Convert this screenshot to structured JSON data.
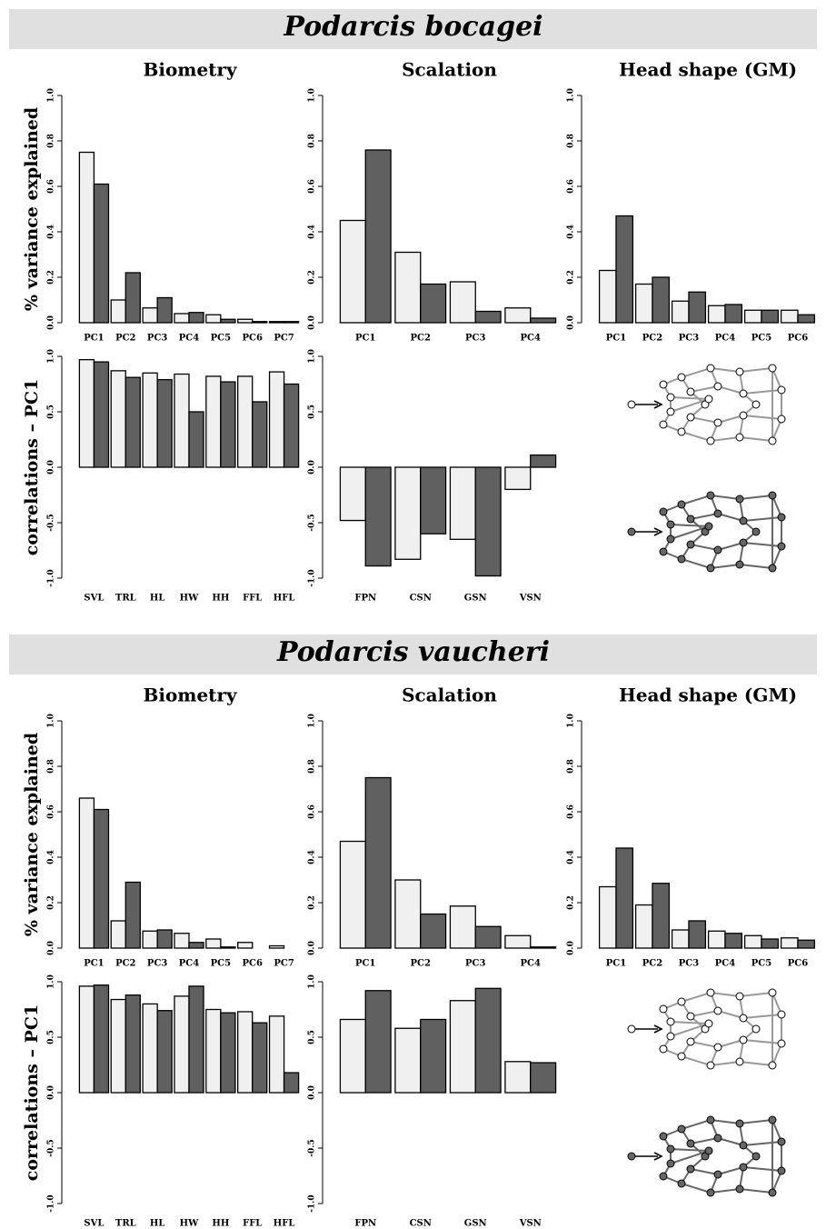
{
  "headings": [
    "Podarcis bocagei",
    "Podarcis vaucheri"
  ],
  "chart_data": [
    {
      "type": "bar",
      "title": "Biometry",
      "ylabel": "% variance explained",
      "categories": [
        "PC1",
        "PC2",
        "PC3",
        "PC4",
        "PC5",
        "PC6",
        "PC7"
      ],
      "series": [
        {
          "color": "#f0f0f0",
          "values": [
            0.75,
            0.1,
            0.065,
            0.04,
            0.035,
            0.015,
            0.005
          ]
        },
        {
          "color": "#606060",
          "values": [
            0.61,
            0.22,
            0.11,
            0.045,
            0.015,
            0.005,
            0.005
          ]
        }
      ],
      "ylim": [
        0,
        1
      ],
      "yticks": [
        {
          "value": 0,
          "label": "0.0"
        },
        0.2,
        0.4,
        0.6,
        0.8,
        {
          "value": 1,
          "label": "1.0"
        }
      ]
    },
    {
      "type": "bar",
      "title": "Scalation",
      "categories": [
        "PC1",
        "PC2",
        "PC3",
        "PC4"
      ],
      "series": [
        {
          "color": "#f0f0f0",
          "values": [
            0.45,
            0.31,
            0.18,
            0.065
          ]
        },
        {
          "color": "#606060",
          "values": [
            0.76,
            0.17,
            0.05,
            0.02
          ]
        }
      ],
      "ylim": [
        0,
        1
      ],
      "yticks": [
        {
          "value": 0,
          "label": "0.0"
        },
        0.2,
        0.4,
        0.6,
        0.8,
        {
          "value": 1,
          "label": "1.0"
        }
      ]
    },
    {
      "type": "bar",
      "title": "Head shape (GM)",
      "categories": [
        "PC1",
        "PC2",
        "PC3",
        "PC4",
        "PC5",
        "PC6"
      ],
      "series": [
        {
          "color": "#f0f0f0",
          "values": [
            0.23,
            0.17,
            0.095,
            0.075,
            0.055,
            0.055
          ]
        },
        {
          "color": "#606060",
          "values": [
            0.47,
            0.2,
            0.135,
            0.08,
            0.055,
            0.035
          ]
        }
      ],
      "ylim": [
        0,
        1
      ],
      "yticks": [
        {
          "value": 0,
          "label": "0.0"
        },
        0.2,
        0.4,
        0.6,
        0.8,
        {
          "value": 1,
          "label": "1.0"
        }
      ]
    },
    {
      "type": "bar",
      "ylabel": "correlations – PC1",
      "categories": [
        "SVL",
        "TRL",
        "HL",
        "HW",
        "HH",
        "FFL",
        "HFL"
      ],
      "series": [
        {
          "color": "#f0f0f0",
          "values": [
            0.97,
            0.87,
            0.85,
            0.84,
            0.82,
            0.82,
            0.86
          ]
        },
        {
          "color": "#606060",
          "values": [
            0.95,
            0.81,
            0.79,
            0.5,
            0.77,
            0.59,
            0.75
          ]
        }
      ],
      "ylim": [
        -1,
        1
      ],
      "yticks": [
        {
          "value": -1,
          "label": "-1.0"
        },
        -0.5,
        {
          "value": 0,
          "label": "0.0"
        },
        0.5,
        {
          "value": 1,
          "label": "1.0"
        }
      ]
    },
    {
      "type": "bar",
      "categories": [
        "FPN",
        "CSN",
        "GSN",
        "VSN"
      ],
      "series": [
        {
          "color": "#f0f0f0",
          "values": [
            -0.48,
            -0.83,
            -0.65,
            -0.2
          ]
        },
        {
          "color": "#606060",
          "values": [
            -0.89,
            -0.6,
            -0.98,
            0.11
          ]
        }
      ],
      "ylim": [
        -1,
        1
      ],
      "yticks": [
        {
          "value": -1,
          "label": "-1.0"
        },
        -0.5,
        {
          "value": 0,
          "label": "0.0"
        },
        0.5,
        {
          "value": 1,
          "label": "1.0"
        }
      ]
    },
    {
      "type": "bar",
      "title": "Biometry",
      "ylabel": "% variance explained",
      "categories": [
        "PC1",
        "PC2",
        "PC3",
        "PC4",
        "PC5",
        "PC6",
        "PC7"
      ],
      "series": [
        {
          "color": "#f0f0f0",
          "values": [
            0.66,
            0.12,
            0.075,
            0.065,
            0.04,
            0.025,
            0.01
          ]
        },
        {
          "color": "#606060",
          "values": [
            0.61,
            0.29,
            0.08,
            0.025,
            0.005,
            0,
            0
          ]
        }
      ],
      "ylim": [
        0,
        1
      ],
      "yticks": [
        {
          "value": 0,
          "label": "0.0"
        },
        0.2,
        0.4,
        0.6,
        0.8,
        {
          "value": 1,
          "label": "1.0"
        }
      ]
    },
    {
      "type": "bar",
      "title": "Scalation",
      "categories": [
        "PC1",
        "PC2",
        "PC3",
        "PC4"
      ],
      "series": [
        {
          "color": "#f0f0f0",
          "values": [
            0.47,
            0.3,
            0.185,
            0.055
          ]
        },
        {
          "color": "#606060",
          "values": [
            0.75,
            0.15,
            0.095,
            0.005
          ]
        }
      ],
      "ylim": [
        0,
        1
      ],
      "yticks": [
        {
          "value": 0,
          "label": "0.0"
        },
        0.2,
        0.4,
        0.6,
        0.8,
        {
          "value": 1,
          "label": "1.0"
        }
      ]
    },
    {
      "type": "bar",
      "title": "Head shape (GM)",
      "categories": [
        "PC1",
        "PC2",
        "PC3",
        "PC4",
        "PC5",
        "PC6"
      ],
      "series": [
        {
          "color": "#f0f0f0",
          "values": [
            0.27,
            0.19,
            0.08,
            0.075,
            0.055,
            0.045
          ]
        },
        {
          "color": "#606060",
          "values": [
            0.44,
            0.285,
            0.12,
            0.065,
            0.04,
            0.035
          ]
        }
      ],
      "ylim": [
        0,
        1
      ],
      "yticks": [
        {
          "value": 0,
          "label": "0.0"
        },
        0.2,
        0.4,
        0.6,
        0.8,
        {
          "value": 1,
          "label": "1.0"
        }
      ]
    },
    {
      "type": "bar",
      "ylabel": "correlations – PC1",
      "categories": [
        "SVL",
        "TRL",
        "HL",
        "HW",
        "HH",
        "FFL",
        "HFL"
      ],
      "series": [
        {
          "color": "#f0f0f0",
          "values": [
            0.96,
            0.84,
            0.8,
            0.87,
            0.75,
            0.73,
            0.69
          ]
        },
        {
          "color": "#606060",
          "values": [
            0.97,
            0.88,
            0.74,
            0.96,
            0.72,
            0.63,
            0.18
          ]
        }
      ],
      "ylim": [
        -1,
        1
      ],
      "yticks": [
        {
          "value": -1,
          "label": "-1.0"
        },
        -0.5,
        {
          "value": 0,
          "label": "0.0"
        },
        0.5,
        {
          "value": 1,
          "label": "1.0"
        }
      ]
    },
    {
      "type": "bar",
      "categories": [
        "FPN",
        "CSN",
        "GSN",
        "VSN"
      ],
      "series": [
        {
          "color": "#f0f0f0",
          "values": [
            0.66,
            0.58,
            0.83,
            0.28
          ]
        },
        {
          "color": "#606060",
          "values": [
            0.92,
            0.66,
            0.94,
            0.27
          ]
        }
      ],
      "ylim": [
        -1,
        1
      ],
      "yticks": [
        {
          "value": -1,
          "label": "-1.0"
        },
        -0.5,
        {
          "value": 0,
          "label": "0.0"
        },
        0.5,
        {
          "value": 1,
          "label": "1.0"
        }
      ]
    }
  ]
}
